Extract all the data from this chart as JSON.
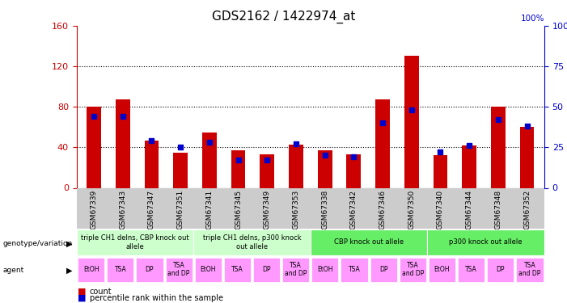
{
  "title": "GDS2162 / 1422974_at",
  "samples": [
    "GSM67339",
    "GSM67343",
    "GSM67347",
    "GSM67351",
    "GSM67341",
    "GSM67345",
    "GSM67349",
    "GSM67353",
    "GSM67338",
    "GSM67342",
    "GSM67346",
    "GSM67350",
    "GSM67340",
    "GSM67344",
    "GSM67348",
    "GSM67352"
  ],
  "count_values": [
    80,
    87,
    47,
    35,
    55,
    37,
    33,
    43,
    37,
    33,
    87,
    130,
    32,
    42,
    80,
    60
  ],
  "percentile_values": [
    44,
    44,
    29,
    25,
    28,
    17,
    17,
    27,
    20,
    19,
    40,
    48,
    22,
    26,
    42,
    38
  ],
  "ylim_left": [
    0,
    160
  ],
  "ylim_right": [
    0,
    100
  ],
  "yticks_left": [
    0,
    40,
    80,
    120,
    160
  ],
  "yticks_right": [
    0,
    25,
    50,
    75,
    100
  ],
  "bar_color": "#cc0000",
  "dot_color": "#0000cc",
  "grid_values": [
    40,
    80,
    120
  ],
  "groups": [
    {
      "label": "triple CH1 delns, CBP knock out\nallele",
      "start": 0,
      "end": 3,
      "color": "#ccffcc"
    },
    {
      "label": "triple CH1 delns, p300 knock\nout allele",
      "start": 4,
      "end": 7,
      "color": "#ccffcc"
    },
    {
      "label": "CBP knock out allele",
      "start": 8,
      "end": 11,
      "color": "#66ee66"
    },
    {
      "label": "p300 knock out allele",
      "start": 12,
      "end": 15,
      "color": "#66ee66"
    }
  ],
  "agents": [
    "EtOH",
    "TSA",
    "DP",
    "TSA\nand DP",
    "EtOH",
    "TSA",
    "DP",
    "TSA\nand DP",
    "EtOH",
    "TSA",
    "DP",
    "TSA\nand DP",
    "EtOH",
    "TSA",
    "DP",
    "TSA\nand DP"
  ],
  "agent_color": "#ff99ff",
  "bg_color": "#ffffff",
  "axis_label_color_left": "#cc0000",
  "axis_label_color_right": "#0000cc",
  "xtick_bg": "#cccccc"
}
